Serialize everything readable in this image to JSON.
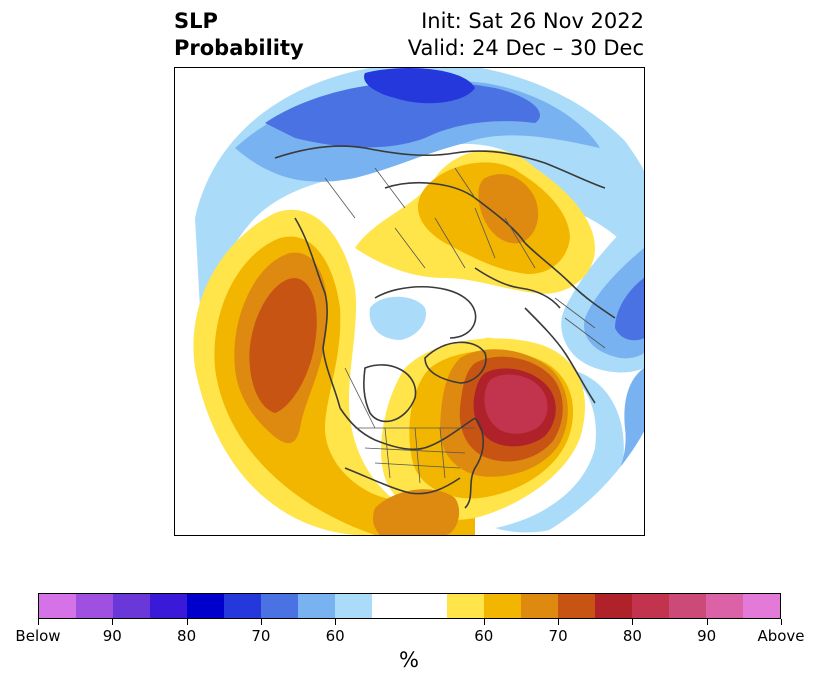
{
  "title": {
    "left_line1": "SLP",
    "left_line2": "Probability",
    "right_line1": "Init: Sat 26 Nov 2022",
    "right_line2": "Valid: 24 Dec – 30 Dec"
  },
  "colorbar": {
    "unit": "%",
    "colors": [
      "#d572e8",
      "#a050e0",
      "#6a38d8",
      "#3a1ad8",
      "#0000cc",
      "#2438dc",
      "#4a72e2",
      "#78b2f0",
      "#aadcfa",
      "#ffffff",
      "#ffffff",
      "#ffe44a",
      "#f2b600",
      "#de8a10",
      "#c85414",
      "#b0222a",
      "#c2344e",
      "#cc4a78",
      "#dc62a8",
      "#e47ad8"
    ],
    "ticks": [
      {
        "label": "Below"
      },
      {
        "label": "90"
      },
      {
        "label": "80"
      },
      {
        "label": "70"
      },
      {
        "label": "60"
      },
      {
        "label": "60"
      },
      {
        "label": "70"
      },
      {
        "label": "80"
      },
      {
        "label": "90"
      },
      {
        "label": "Above"
      }
    ]
  },
  "map": {
    "projection": "north-polar-stereographic",
    "colors": {
      "blue_light": "#aadcfa",
      "blue_mid": "#78b2f0",
      "blue_med": "#4a72e2",
      "blue_dark": "#2438dc",
      "yellow": "#ffe44a",
      "gold": "#f2b600",
      "orange": "#de8a10",
      "burnt": "#c85414",
      "red": "#b0222a",
      "rose": "#c2344e",
      "land_line": "#3a3a3a"
    }
  }
}
